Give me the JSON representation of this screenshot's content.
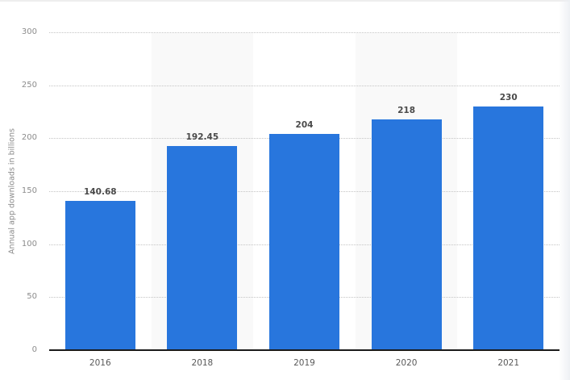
{
  "chart_data": {
    "type": "bar",
    "title": "",
    "xlabel": "",
    "ylabel": "Annual app downloads in billions",
    "categories": [
      "2016",
      "2018",
      "2019",
      "2020",
      "2021"
    ],
    "values": [
      140.68,
      192.45,
      204,
      218,
      230
    ],
    "value_labels": [
      "140.68",
      "192.45",
      "204",
      "218",
      "230"
    ],
    "ylim": [
      0,
      300
    ],
    "yticks": [
      "0",
      "50",
      "100",
      "150",
      "200",
      "250",
      "300"
    ],
    "grid": true,
    "legend": null,
    "bar_color": "#2876dd"
  }
}
